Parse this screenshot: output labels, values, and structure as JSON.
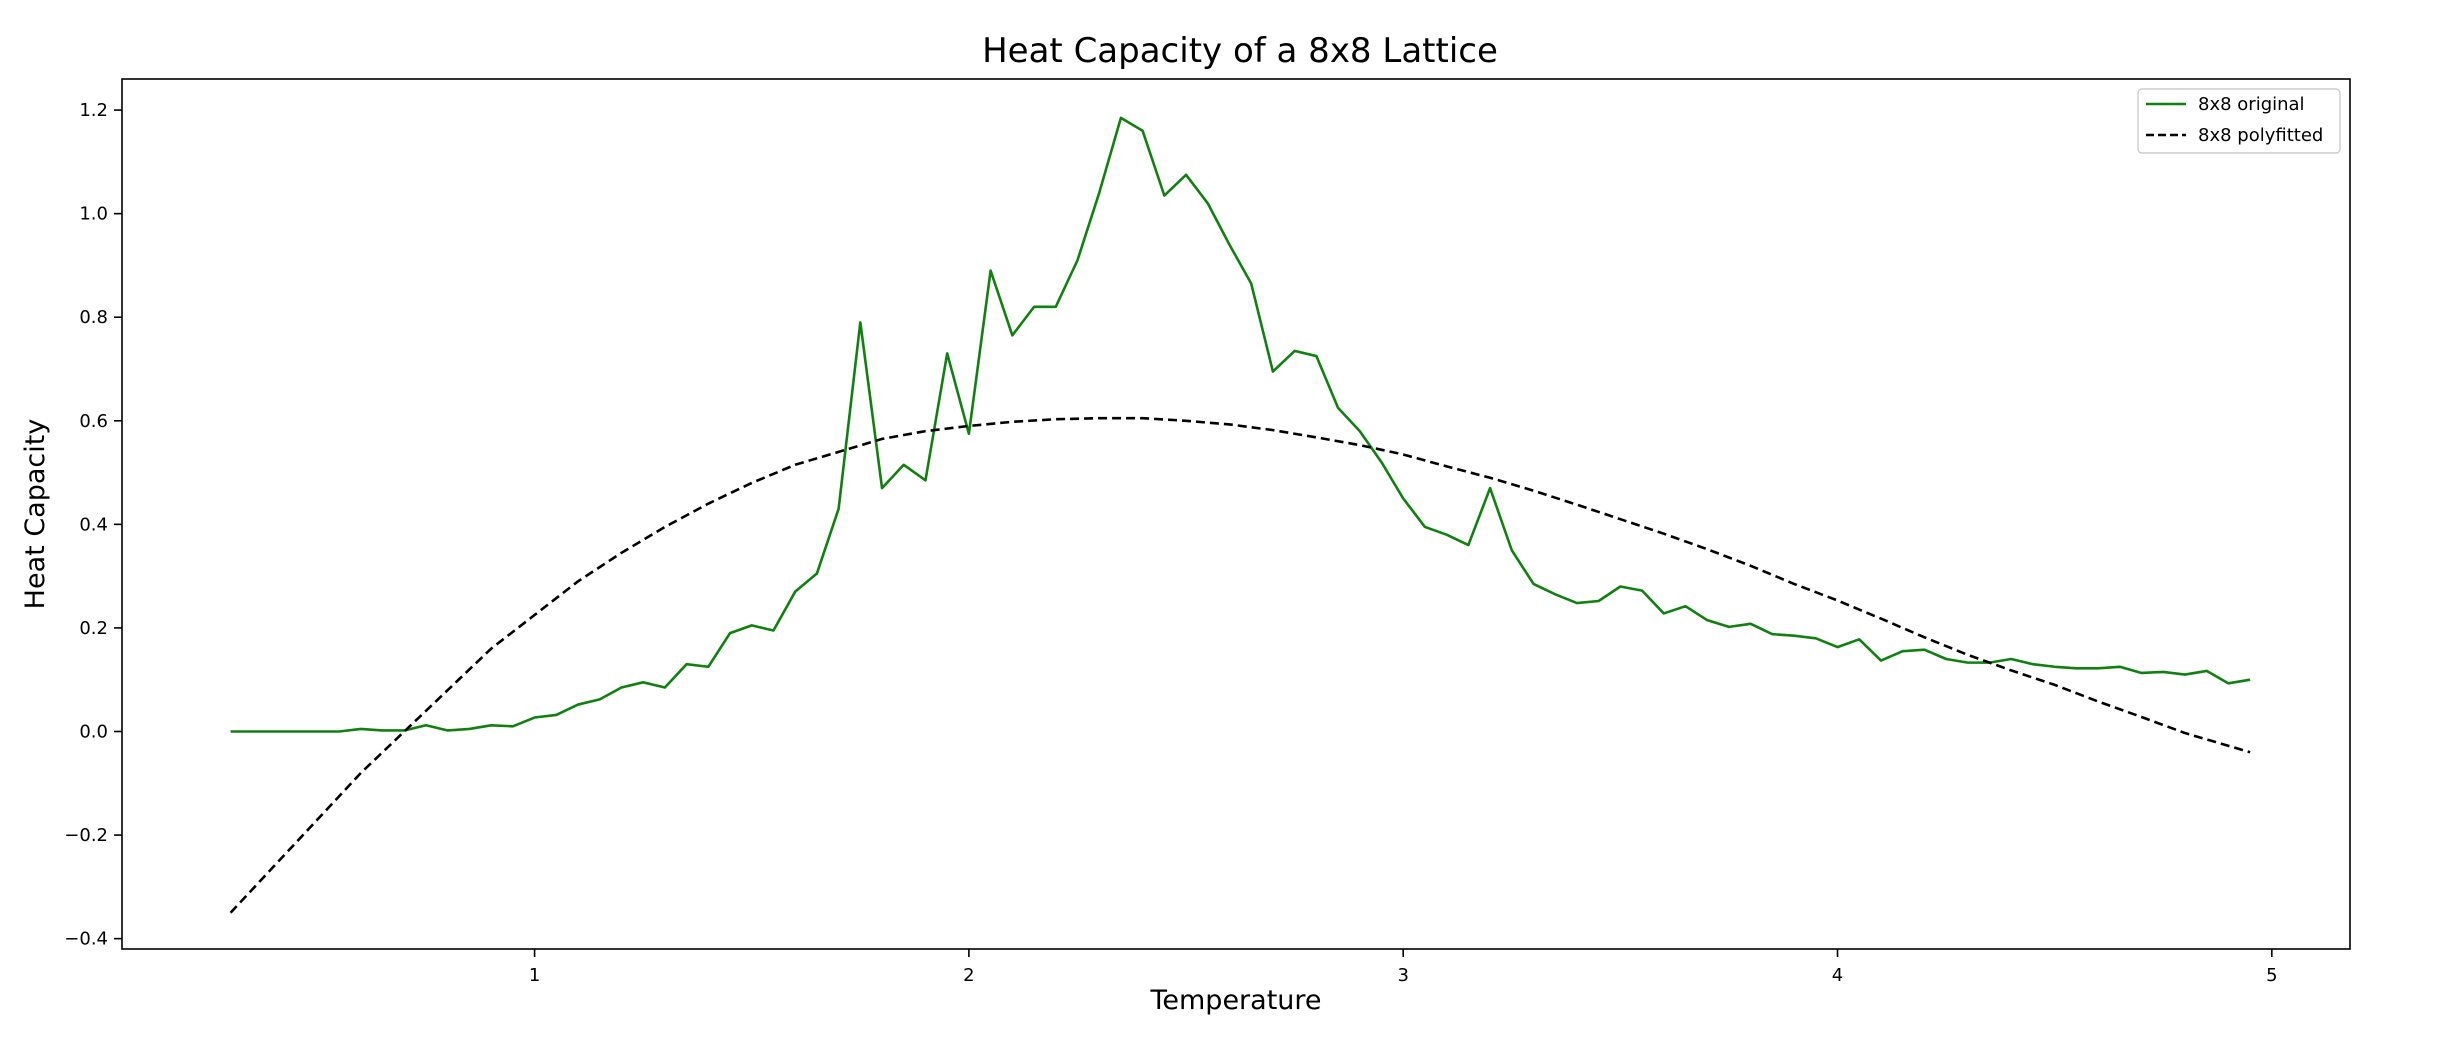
{
  "chart_data": {
    "type": "line",
    "title": "Heat Capacity of a 8x8 Lattice",
    "xlabel": "Temperature",
    "ylabel": "Heat Capacity",
    "xlim": [
      0.05,
      5.18
    ],
    "ylim": [
      -0.42,
      1.26
    ],
    "xticks": [
      1,
      2,
      3,
      4,
      5
    ],
    "xtick_labels": [
      "1",
      "2",
      "3",
      "4",
      "5"
    ],
    "yticks": [
      -0.4,
      -0.2,
      0.0,
      0.2,
      0.4,
      0.6,
      0.8,
      1.0,
      1.2
    ],
    "ytick_labels": [
      "−0.4",
      "−0.2",
      "0.0",
      "0.2",
      "0.4",
      "0.6",
      "0.8",
      "1.0",
      "1.2"
    ],
    "grid": false,
    "legend_position": "top-right",
    "series": [
      {
        "name": "8x8 original",
        "color": "#108010",
        "style": "solid",
        "x": [
          0.3,
          0.35,
          0.4,
          0.45,
          0.5,
          0.55,
          0.6,
          0.65,
          0.7,
          0.75,
          0.8,
          0.85,
          0.9,
          0.95,
          1.0,
          1.05,
          1.1,
          1.15,
          1.2,
          1.25,
          1.3,
          1.35,
          1.4,
          1.45,
          1.5,
          1.55,
          1.6,
          1.65,
          1.7,
          1.75,
          1.8,
          1.85,
          1.9,
          1.95,
          2.0,
          2.05,
          2.1,
          2.15,
          2.2,
          2.25,
          2.3,
          2.35,
          2.4,
          2.45,
          2.5,
          2.55,
          2.6,
          2.65,
          2.7,
          2.75,
          2.8,
          2.85,
          2.9,
          2.95,
          3.0,
          3.05,
          3.1,
          3.15,
          3.2,
          3.25,
          3.3,
          3.35,
          3.4,
          3.45,
          3.5,
          3.55,
          3.6,
          3.65,
          3.7,
          3.75,
          3.8,
          3.85,
          3.9,
          3.95,
          4.0,
          4.05,
          4.1,
          4.15,
          4.2,
          4.25,
          4.3,
          4.35,
          4.4,
          4.45,
          4.5,
          4.55,
          4.6,
          4.65,
          4.7,
          4.75,
          4.8,
          4.85,
          4.9,
          4.95
        ],
        "y": [
          0.0,
          0.0,
          0.0,
          0.0,
          0.0,
          0.0,
          0.005,
          0.002,
          0.002,
          0.012,
          0.002,
          0.005,
          0.012,
          0.01,
          0.027,
          0.032,
          0.052,
          0.062,
          0.085,
          0.095,
          0.085,
          0.13,
          0.125,
          0.19,
          0.205,
          0.195,
          0.27,
          0.305,
          0.43,
          0.79,
          0.47,
          0.515,
          0.485,
          0.73,
          0.575,
          0.89,
          0.765,
          0.82,
          0.82,
          0.91,
          1.04,
          1.185,
          1.16,
          1.035,
          1.075,
          1.02,
          0.94,
          0.865,
          0.695,
          0.735,
          0.725,
          0.625,
          0.58,
          0.52,
          0.45,
          0.395,
          0.38,
          0.36,
          0.47,
          0.35,
          0.285,
          0.265,
          0.248,
          0.252,
          0.28,
          0.272,
          0.228,
          0.242,
          0.215,
          0.202,
          0.208,
          0.188,
          0.185,
          0.18,
          0.163,
          0.178,
          0.137,
          0.155,
          0.158,
          0.14,
          0.133,
          0.133,
          0.14,
          0.13,
          0.125,
          0.122,
          0.122,
          0.125,
          0.113,
          0.115,
          0.11,
          0.117,
          0.093,
          0.1
        ]
      },
      {
        "name": "8x8 polyfitted",
        "color": "#000000",
        "style": "dashed",
        "x": [
          0.3,
          0.4,
          0.5,
          0.6,
          0.7,
          0.8,
          0.9,
          1.0,
          1.1,
          1.2,
          1.3,
          1.4,
          1.5,
          1.6,
          1.7,
          1.8,
          1.9,
          2.0,
          2.1,
          2.2,
          2.3,
          2.4,
          2.5,
          2.6,
          2.7,
          2.8,
          2.9,
          3.0,
          3.1,
          3.2,
          3.3,
          3.4,
          3.5,
          3.6,
          3.7,
          3.8,
          3.9,
          4.0,
          4.1,
          4.2,
          4.3,
          4.4,
          4.5,
          4.6,
          4.7,
          4.8,
          4.95
        ],
        "y": [
          -0.35,
          -0.26,
          -0.17,
          -0.08,
          0.0,
          0.08,
          0.16,
          0.225,
          0.29,
          0.345,
          0.395,
          0.44,
          0.48,
          0.515,
          0.54,
          0.565,
          0.58,
          0.59,
          0.598,
          0.603,
          0.605,
          0.605,
          0.6,
          0.593,
          0.582,
          0.568,
          0.553,
          0.535,
          0.512,
          0.49,
          0.465,
          0.438,
          0.41,
          0.382,
          0.352,
          0.32,
          0.285,
          0.253,
          0.218,
          0.182,
          0.148,
          0.118,
          0.09,
          0.058,
          0.028,
          -0.003,
          -0.04
        ]
      }
    ]
  }
}
